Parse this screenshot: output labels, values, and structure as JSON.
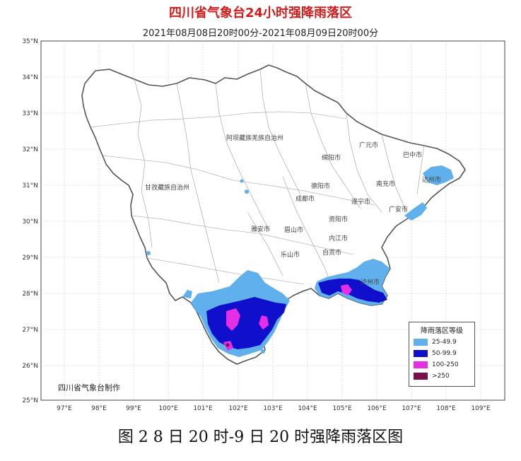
{
  "title": "四川省气象台24小时强降雨落区",
  "subtitle": "2021年08月08日20时00分-2021年08月09日20时00分",
  "caption": "图 2   8 日 20 时-9 日 20 时强降雨落区图",
  "maker": "四川省气象台制作",
  "legend": {
    "title": "降雨落区等级",
    "items": [
      {
        "label": "25-49.9",
        "color": "#5fb0ec"
      },
      {
        "label": "50-99.9",
        "color": "#1010cc"
      },
      {
        "label": "100-250",
        "color": "#e62ee6"
      },
      {
        "label": ">250",
        "color": "#7a0f4a"
      }
    ]
  },
  "axes": {
    "lat": [
      "35°N",
      "34°N",
      "33°N",
      "32°N",
      "31°N",
      "30°N",
      "29°N",
      "28°N",
      "27°N",
      "26°N",
      "25°N"
    ],
    "lon": [
      "97°E",
      "98°E",
      "99°E",
      "100°E",
      "101°E",
      "102°E",
      "103°E",
      "104°E",
      "105°E",
      "106°E",
      "107°E",
      "108°E",
      "109°E"
    ]
  },
  "place_labels": [
    "阿坝藏族羌族自治州",
    "甘孜藏族自治州",
    "广元市",
    "巴中市",
    "绵阳市",
    "达州市",
    "南充市",
    "德阳市",
    "遂宁市",
    "成都市",
    "广安市",
    "资阳市",
    "雅安市",
    "眉山市",
    "乐山市",
    "内江市",
    "自贡市",
    "泸州市"
  ]
}
